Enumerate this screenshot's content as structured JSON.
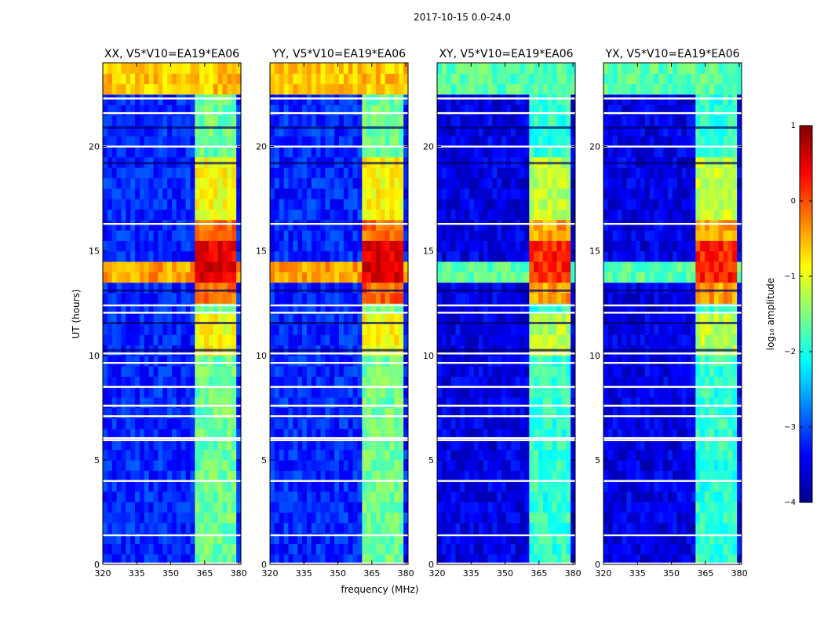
{
  "chart_data": {
    "type": "heatmap",
    "title": "2017-10-15 0.0-24.0",
    "xlabel": "frequency (MHz)",
    "ylabel": "UT (hours)",
    "xlim": [
      320,
      381
    ],
    "ylim": [
      0,
      24
    ],
    "xticks": [
      "320",
      "335",
      "350",
      "365",
      "380"
    ],
    "xtick_values": [
      320,
      335,
      350,
      365,
      380
    ],
    "yticks": [
      "0",
      "5",
      "10",
      "15",
      "20"
    ],
    "ytick_values": [
      0,
      5,
      10,
      15,
      20
    ],
    "colorscale": "jet",
    "panels": [
      {
        "title": "XX, V5*V10=EA19*EA06",
        "pol": "XX"
      },
      {
        "title": "YY, V5*V10=EA19*EA06",
        "pol": "YY"
      },
      {
        "title": "XY, V5*V10=EA19*EA06",
        "pol": "XY"
      },
      {
        "title": "YX, V5*V10=EA19*EA06",
        "pol": "YX"
      }
    ],
    "colorbar": {
      "label": "log₁₀ amplitude",
      "range": [
        -4,
        1
      ],
      "ticks": [
        "1",
        "0",
        "−1",
        "−2",
        "−3",
        "−4"
      ],
      "tick_values": [
        1,
        0,
        -1,
        -2,
        -3,
        -4
      ]
    },
    "rfi_band_mhz": [
      361,
      379
    ],
    "flagged_hours": [
      0.05,
      1.4,
      4.0,
      5.95,
      6.05,
      7.1,
      7.6,
      8.5,
      9.65,
      10.1,
      12.05,
      12.4,
      16.3,
      20.0,
      21.6,
      22.3
    ],
    "dark_hours": [
      10.25,
      11.55,
      13.1,
      19.2,
      20.9
    ]
  },
  "colors": {
    "background": "#ffffff",
    "axis": "#000000"
  }
}
